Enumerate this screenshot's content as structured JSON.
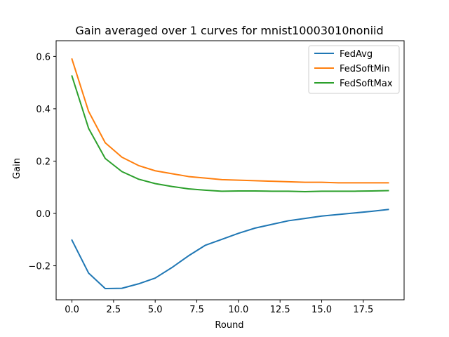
{
  "chart_data": {
    "type": "line",
    "title": "Gain averaged over 1 curves for mnist10003010noniid",
    "xlabel": "Round",
    "ylabel": "Gain",
    "xlim": [
      -0.95,
      19.95
    ],
    "ylim": [
      -0.33,
      0.66
    ],
    "xticks": [
      0.0,
      2.5,
      5.0,
      7.5,
      10.0,
      12.5,
      15.0,
      17.5
    ],
    "xtick_labels": [
      "0.0",
      "2.5",
      "5.0",
      "7.5",
      "10.0",
      "12.5",
      "15.0",
      "17.5"
    ],
    "yticks": [
      -0.2,
      0.0,
      0.2,
      0.4,
      0.6
    ],
    "ytick_labels": [
      "−0.2",
      "0.0",
      "0.2",
      "0.4",
      "0.6"
    ],
    "legend_position": "top-right",
    "grid": false,
    "x": [
      0,
      1,
      2,
      3,
      4,
      5,
      6,
      7,
      8,
      9,
      10,
      11,
      12,
      13,
      14,
      15,
      16,
      17,
      18,
      19
    ],
    "series": [
      {
        "name": "FedAvg",
        "color": "#1f77b4",
        "values": [
          -0.102,
          -0.228,
          -0.287,
          -0.286,
          -0.269,
          -0.247,
          -0.207,
          -0.162,
          -0.122,
          -0.099,
          -0.076,
          -0.056,
          -0.042,
          -0.028,
          -0.019,
          -0.01,
          -0.004,
          0.002,
          0.008,
          0.015
        ]
      },
      {
        "name": "FedSoftMin",
        "color": "#ff7f0e",
        "values": [
          0.59,
          0.39,
          0.27,
          0.215,
          0.183,
          0.163,
          0.152,
          0.141,
          0.135,
          0.129,
          0.127,
          0.125,
          0.123,
          0.121,
          0.119,
          0.119,
          0.117,
          0.117,
          0.117,
          0.117
        ]
      },
      {
        "name": "FedSoftMax",
        "color": "#2ca02c",
        "values": [
          0.525,
          0.325,
          0.21,
          0.16,
          0.131,
          0.114,
          0.103,
          0.094,
          0.089,
          0.085,
          0.086,
          0.086,
          0.085,
          0.085,
          0.083,
          0.085,
          0.085,
          0.085,
          0.086,
          0.087
        ]
      }
    ]
  }
}
